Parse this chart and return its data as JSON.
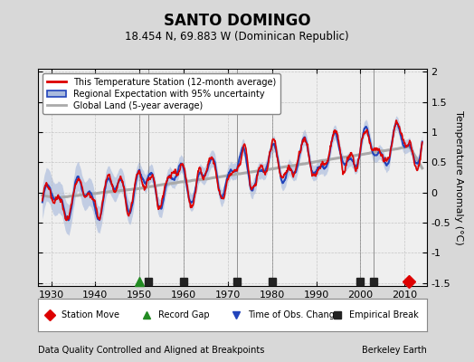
{
  "title": "SANTO DOMINGO",
  "subtitle": "18.454 N, 69.883 W (Dominican Republic)",
  "xlabel_bottom": "Data Quality Controlled and Aligned at Breakpoints",
  "xlabel_right": "Berkeley Earth",
  "ylabel": "Temperature Anomaly (°C)",
  "xlim": [
    1927,
    2015
  ],
  "ylim": [
    -1.55,
    2.05
  ],
  "yticks": [
    -1.5,
    -1.0,
    -0.5,
    0.0,
    0.5,
    1.0,
    1.5,
    2.0
  ],
  "xticks": [
    1930,
    1940,
    1950,
    1960,
    1970,
    1980,
    1990,
    2000,
    2010
  ],
  "bg_color": "#d8d8d8",
  "plot_bg_color": "#efefef",
  "station_color": "#dd0000",
  "regional_color": "#2244bb",
  "regional_fill_color": "#aabbdd",
  "global_color": "#aaaaaa",
  "vertical_line_color": "#777777",
  "grid_color": "#bbbbbb",
  "vertical_lines": [
    1950,
    1952,
    1960,
    1972,
    1980,
    2000,
    2003
  ],
  "record_gap_positions": [
    1950
  ],
  "obs_change_positions": [],
  "empirical_break_positions": [
    1952,
    1960,
    1972,
    1980,
    2000,
    2003
  ],
  "station_move_positions": [
    2011
  ],
  "seed": 12345
}
